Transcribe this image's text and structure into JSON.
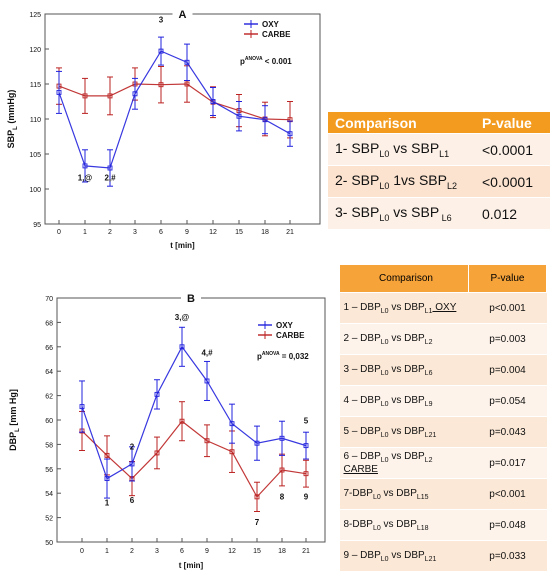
{
  "chart_data": [
    {
      "type": "line",
      "title": "A",
      "ylabel": "SBP (mmHg)",
      "ylabel_sub": "L",
      "xlabel": "t [min]",
      "x": [
        0,
        1,
        2,
        3,
        6,
        9,
        12,
        15,
        18,
        21
      ],
      "yticks": [
        95,
        100,
        105,
        110,
        115,
        120,
        125
      ],
      "ylim": [
        95,
        125
      ],
      "grid": false,
      "legend": "top-right",
      "annotation": "< 0.001",
      "annotation_sup": "ANOVA",
      "annotation_p": "p",
      "series": [
        {
          "name": "OXY",
          "color": "#2222dd",
          "values": [
            113.8,
            103.3,
            103.0,
            113.6,
            119.7,
            118.1,
            112.5,
            110.4,
            109.9,
            107.9
          ],
          "err": [
            3.0,
            2.3,
            2.6,
            2.2,
            2.0,
            2.6,
            2.0,
            2.1,
            2.0,
            1.8
          ]
        },
        {
          "name": "CARBE",
          "color": "#bb2222",
          "values": [
            114.7,
            113.3,
            113.3,
            115.0,
            114.9,
            115.0,
            112.4,
            111.2,
            110.0,
            109.9
          ],
          "err": [
            2.6,
            2.5,
            2.7,
            2.3,
            2.6,
            2.6,
            2.2,
            2.3,
            2.4,
            2.6
          ]
        }
      ],
      "point_labels": [
        {
          "text": "1,@",
          "x": 1,
          "y": 101.2
        },
        {
          "text": "2,#",
          "x": 2,
          "y": 101.2
        },
        {
          "text": "3",
          "x": 6,
          "y": 123.8
        }
      ]
    },
    {
      "type": "line",
      "title": "B",
      "ylabel": "DBP [mm Hg]",
      "ylabel_sub": "L",
      "xlabel": "t [min]",
      "x": [
        0,
        1,
        2,
        3,
        6,
        9,
        12,
        15,
        18,
        21
      ],
      "yticks": [
        50,
        52,
        54,
        56,
        58,
        60,
        62,
        64,
        66,
        68,
        70
      ],
      "ylim": [
        50,
        70
      ],
      "grid": false,
      "legend": "top-right",
      "annotation": "= 0,032",
      "annotation_sup": "ANOVA",
      "annotation_p": "p",
      "series": [
        {
          "name": "OXY",
          "color": "#2222dd",
          "values": [
            61.1,
            55.2,
            56.4,
            62.1,
            66.0,
            63.2,
            59.7,
            58.1,
            58.5,
            57.9
          ],
          "err": [
            2.1,
            1.6,
            1.4,
            1.2,
            1.6,
            1.6,
            1.6,
            1.4,
            1.4,
            1.1
          ]
        },
        {
          "name": "CARBE",
          "color": "#bb2222",
          "values": [
            59.1,
            57.1,
            55.2,
            57.3,
            59.9,
            58.3,
            57.4,
            53.7,
            55.9,
            55.6
          ],
          "err": [
            1.6,
            1.6,
            1.4,
            1.3,
            1.6,
            1.3,
            1.7,
            1.2,
            1.3,
            1.1
          ]
        }
      ],
      "point_labels": [
        {
          "text": "1",
          "x": 1,
          "y": 53.0
        },
        {
          "text": "2",
          "x": 2,
          "y": 57.6
        },
        {
          "text": "6",
          "x": 2,
          "y": 53.2
        },
        {
          "text": "3,@",
          "x": 6,
          "y": 68.2
        },
        {
          "text": "4,#",
          "x": 9,
          "y": 65.3
        },
        {
          "text": "7",
          "x": 15,
          "y": 51.4
        },
        {
          "text": "8",
          "x": 18,
          "y": 53.5
        },
        {
          "text": "5",
          "x": 21,
          "y": 59.7
        },
        {
          "text": "9",
          "x": 21,
          "y": 53.5
        }
      ]
    }
  ],
  "table1": {
    "headers": [
      "Comparison",
      "P-value"
    ],
    "rows": [
      {
        "pre": "1- SBP",
        "s1": "L0",
        "mid": " vs SBP",
        "s2": "L1",
        "post": "",
        "p": "<0.0001"
      },
      {
        "pre": "2- SBP",
        "s1": "L0",
        "mid": " 1vs SBP",
        "s2": "L2",
        "post": "",
        "p": "<0.0001"
      },
      {
        "pre": "3- SBP",
        "s1": "L0",
        "mid": " vs SBP",
        "s2": " L6",
        "post": "",
        "p": "0.012"
      }
    ]
  },
  "table2": {
    "headers": [
      "Comparison",
      "P-value"
    ],
    "rows": [
      {
        "pre": "1 – DBP",
        "s1": "L0",
        "mid": " vs DBP",
        "s2": "L1",
        "post": " OXY",
        "post_u": true,
        "p": "p<0.001"
      },
      {
        "pre": "2 – DBP",
        "s1": "L0",
        "mid": " vs DBP",
        "s2": "L2",
        "post": "",
        "p": "p=0.003"
      },
      {
        "pre": "3 – DBP",
        "s1": "L0",
        "mid": " vs DBP",
        "s2": "L6",
        "post": "",
        "p": "p=0.004"
      },
      {
        "pre": "4 – DBP",
        "s1": "L0",
        "mid": " vs DBP",
        "s2": "L9",
        "post": "",
        "p": "p=0.054"
      },
      {
        "pre": "5 – DBP",
        "s1": "L0",
        "mid": " vs DBP",
        "s2": "L21",
        "post": "",
        "p": "p=0.043"
      },
      {
        "pre": "6 – DBP",
        "s1": "L0",
        "mid": " vs DBP",
        "s2": "L2",
        "post": "CARBE",
        "post_u": true,
        "post_break": true,
        "p": "p=0.017"
      },
      {
        "pre": "7-DBP",
        "s1": "L0",
        "mid": " vs DBP",
        "s2": "L15",
        "post": "",
        "p": "p<0.001"
      },
      {
        "pre": "8-DBP",
        "s1": "L0",
        "mid": " vs DBP",
        "s2": "L18",
        "post": "",
        "p": "p=0.048"
      },
      {
        "pre": "9 – DBP",
        "s1": "L0",
        "mid": " vs DBP",
        "s2": "L21",
        "post": "",
        "p": "p=0.033"
      }
    ]
  }
}
